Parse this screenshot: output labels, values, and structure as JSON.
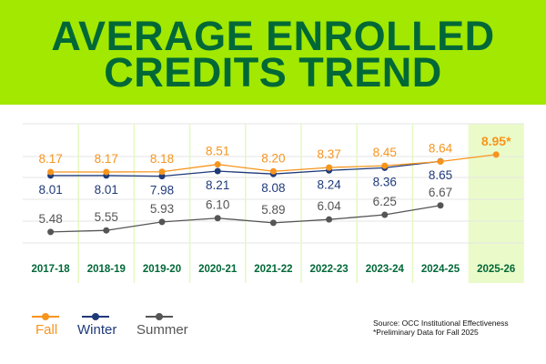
{
  "chart_data": {
    "type": "line",
    "title": "AVERAGE ENROLLED CREDITS TREND",
    "title_lines": [
      "AVERAGE ENROLLED",
      "CREDITS TREND"
    ],
    "categories": [
      "2017-18",
      "2018-19",
      "2019-20",
      "2020-21",
      "2021-22",
      "2022-23",
      "2023-24",
      "2024-25",
      "2025-26"
    ],
    "highlighted_category": "2025-26",
    "series": [
      {
        "name": "Fall",
        "color": "#f7941d",
        "values": [
          8.17,
          8.17,
          8.18,
          8.51,
          8.2,
          8.37,
          8.45,
          8.64,
          8.95
        ],
        "labels": [
          "8.17",
          "8.17",
          "8.18",
          "8.51",
          "8.20",
          "8.37",
          "8.45",
          "8.64",
          "8.95*"
        ]
      },
      {
        "name": "Winter",
        "color": "#1f3a7a",
        "values": [
          8.01,
          8.01,
          7.98,
          8.21,
          8.08,
          8.24,
          8.36,
          8.65,
          null
        ],
        "labels": [
          "8.01",
          "8.01",
          "7.98",
          "8.21",
          "8.08",
          "8.24",
          "8.36",
          "8.65",
          ""
        ]
      },
      {
        "name": "Summer",
        "color": "#555555",
        "values": [
          5.48,
          5.55,
          5.93,
          6.1,
          5.89,
          6.04,
          6.25,
          6.67,
          null
        ],
        "labels": [
          "5.48",
          "5.55",
          "5.93",
          "6.10",
          "5.89",
          "6.04",
          "6.25",
          "6.67",
          ""
        ]
      }
    ],
    "ylim": [
      4.2,
      10.3
    ],
    "grid": true,
    "legend_placement": "bottom-left",
    "colors": {
      "header_bg": "#a2e800",
      "title": "#006837",
      "category_label": "#006837",
      "highlight_bg": "#eafbc9",
      "separator": "#e4f9c0",
      "grid": "#e6e6e6"
    }
  },
  "notes": {
    "source": "Source: OCC Institutional Effectiveness",
    "footnote": "*Preliminary Data for Fall 2025"
  }
}
